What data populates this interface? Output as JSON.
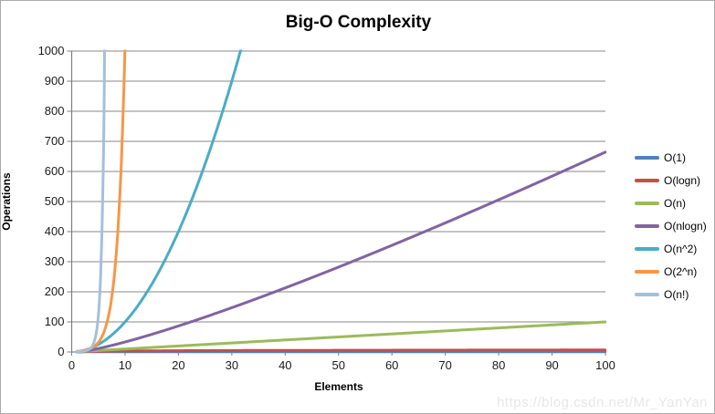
{
  "title": "Big-O Complexity",
  "watermark": "https://blog.csdn.net/Mr_YanYan",
  "chart_data": {
    "type": "line",
    "title": "Big-O Complexity",
    "xlabel": "Elements",
    "ylabel": "Operations",
    "xlim": [
      0,
      100
    ],
    "ylim": [
      0,
      1000
    ],
    "x_ticks": [
      0,
      10,
      20,
      30,
      40,
      50,
      60,
      70,
      80,
      90,
      100
    ],
    "y_ticks": [
      0,
      100,
      200,
      300,
      400,
      500,
      600,
      700,
      800,
      900,
      1000
    ],
    "grid": "horizontal-only",
    "gridline_color": "#878787",
    "axis_color": "#808080",
    "legend_position": "right",
    "series": [
      {
        "name": "O(1)",
        "color": "#4F81BD",
        "fn": "1",
        "points": [
          [
            1,
            1
          ],
          [
            25,
            1
          ],
          [
            50,
            1
          ],
          [
            75,
            1
          ],
          [
            100,
            1
          ]
        ]
      },
      {
        "name": "O(logn)",
        "color": "#C0504D",
        "fn": "log2(n)",
        "points": [
          [
            1,
            0
          ],
          [
            10,
            3.3
          ],
          [
            25,
            4.6
          ],
          [
            50,
            5.6
          ],
          [
            100,
            6.6
          ]
        ]
      },
      {
        "name": "O(n)",
        "color": "#9BBB59",
        "fn": "n",
        "points": [
          [
            1,
            1
          ],
          [
            25,
            25
          ],
          [
            50,
            50
          ],
          [
            75,
            75
          ],
          [
            100,
            100
          ]
        ]
      },
      {
        "name": "O(nlogn)",
        "color": "#8064A2",
        "fn": "n*log2(n)",
        "points": [
          [
            1,
            0
          ],
          [
            10,
            33
          ],
          [
            25,
            116
          ],
          [
            50,
            282
          ],
          [
            75,
            467
          ],
          [
            100,
            664
          ]
        ]
      },
      {
        "name": "O(n^2)",
        "color": "#4BACC6",
        "fn": "n^2",
        "points": [
          [
            1,
            1
          ],
          [
            10,
            100
          ],
          [
            20,
            400
          ],
          [
            31.6,
            1000
          ]
        ]
      },
      {
        "name": "O(2^n)",
        "color": "#F79646",
        "fn": "2^n",
        "points": [
          [
            1,
            2
          ],
          [
            5,
            32
          ],
          [
            8,
            256
          ],
          [
            9.97,
            1000
          ]
        ]
      },
      {
        "name": "O(n!)",
        "color": "#A5BFDD",
        "fn": "n!",
        "points": [
          [
            1,
            1
          ],
          [
            4,
            24
          ],
          [
            5,
            120
          ],
          [
            6,
            720
          ],
          [
            6.5,
            1000
          ]
        ]
      }
    ]
  }
}
